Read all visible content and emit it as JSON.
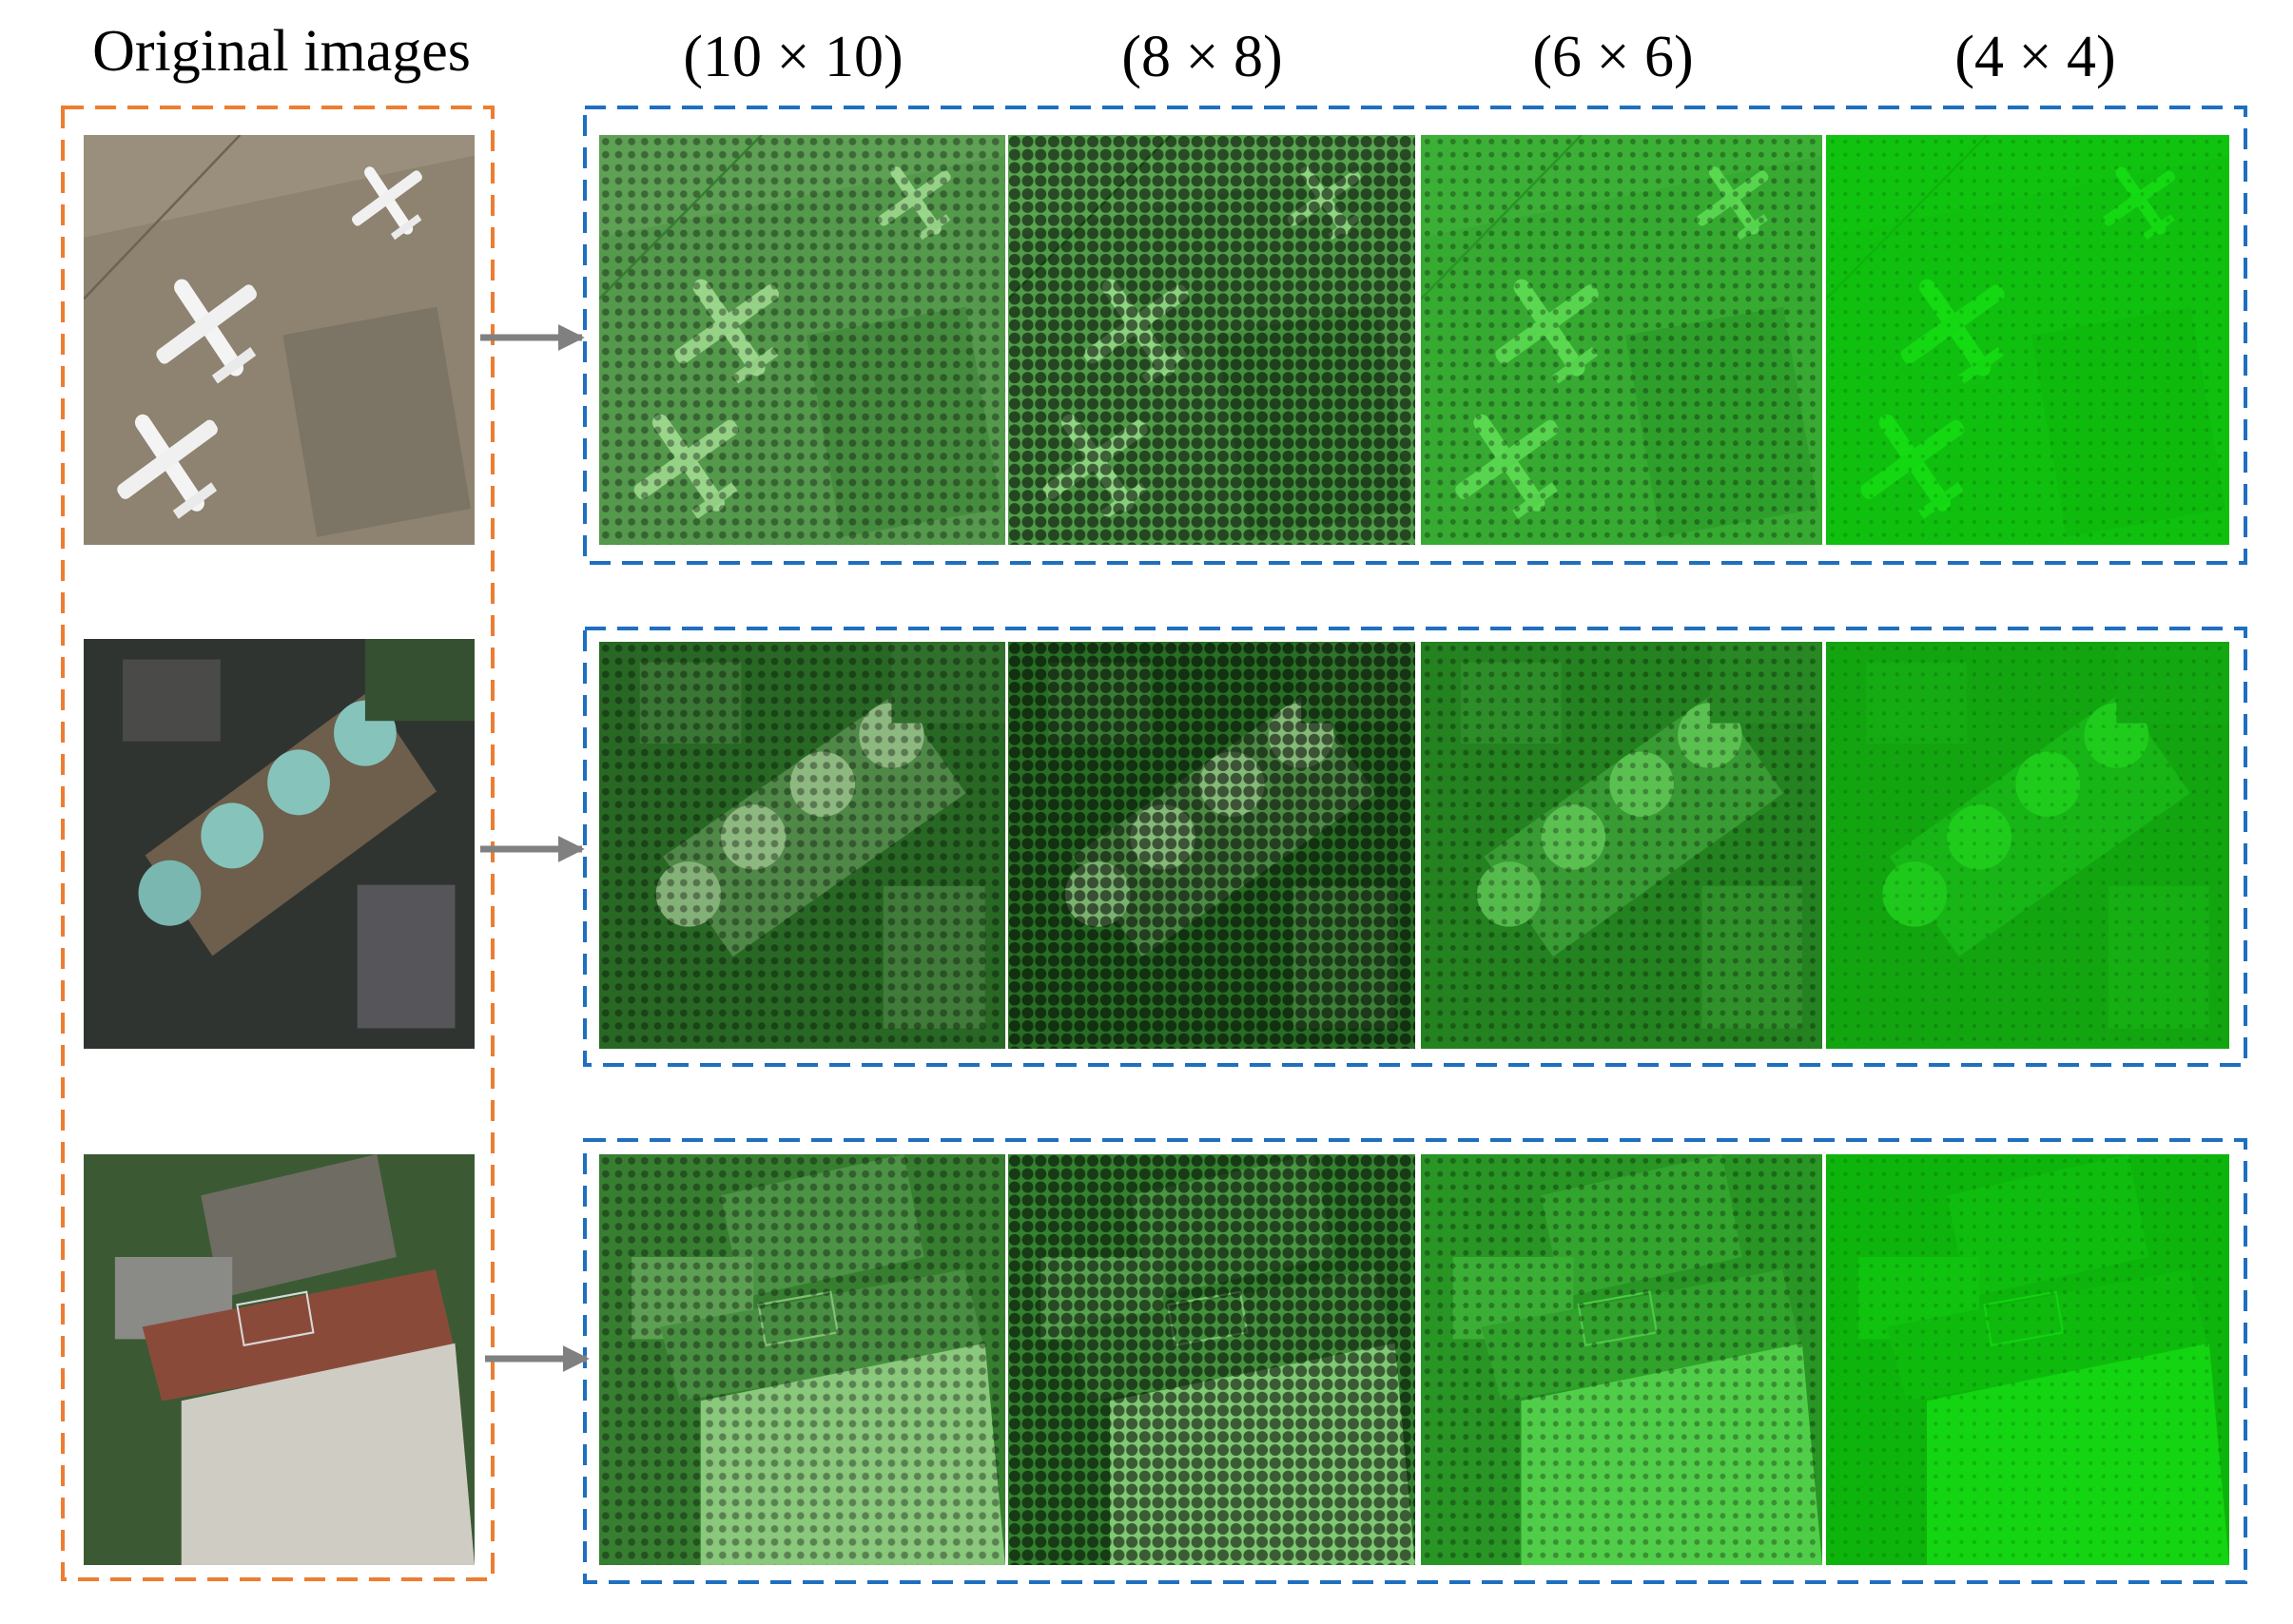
{
  "title": "Original images",
  "columns": [
    "(10 × 10)",
    "(8 × 8)",
    "(6 × 6)",
    "(4 × 4)"
  ]
}
